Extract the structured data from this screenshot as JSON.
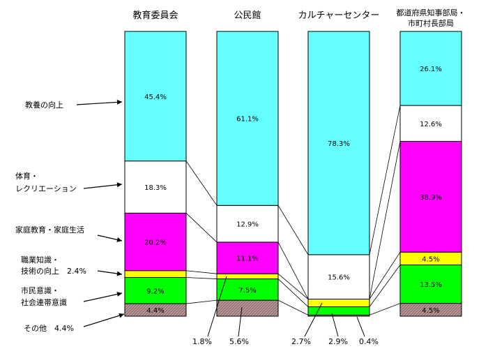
{
  "chart_data": {
    "type": "bar",
    "stacked": true,
    "percent": true,
    "categories": [
      [
        "教育委員会"
      ],
      [
        "公民館"
      ],
      [
        "カルチャーセンター"
      ],
      [
        "都道府県知事部局・",
        "市町村長部局"
      ]
    ],
    "series": [
      {
        "name": "その他",
        "color": "#b89a9a",
        "pattern": "hatch",
        "values": [
          4.4,
          5.6,
          0.4,
          4.5
        ]
      },
      {
        "name": "市民意識・社会連帯意識",
        "color": "#00ff00",
        "values": [
          9.2,
          7.5,
          2.9,
          13.5
        ]
      },
      {
        "name": "職業知識・技術の向上",
        "color": "#ffff00",
        "values": [
          2.4,
          1.8,
          2.7,
          4.5
        ]
      },
      {
        "name": "家庭教育・家庭生活",
        "color": "#ff00ff",
        "values": [
          20.2,
          11.1,
          0.0,
          38.9
        ]
      },
      {
        "name": "体育・レクリエーション",
        "color": "#ffffff",
        "values": [
          18.3,
          12.9,
          15.6,
          12.6
        ]
      },
      {
        "name": "教養の向上",
        "color": "#66ffff",
        "values": [
          45.4,
          61.1,
          78.3,
          26.1
        ]
      }
    ],
    "segment_labels": [
      [
        "4.4%",
        "9.2%",
        "",
        "20.2%",
        "18.3%",
        "45.4%"
      ],
      [
        "",
        "7.5%",
        "",
        "11.1%",
        "12.9%",
        "61.1%"
      ],
      [
        "",
        "",
        "",
        "",
        "15.6%",
        "78.3%"
      ],
      [
        "4.5%",
        "13.5%",
        "4.5%",
        "38.9%",
        "12.6%",
        "26.1%"
      ]
    ],
    "left_labels": [
      {
        "lines": [
          "教養の向上"
        ]
      },
      {
        "lines": [
          "体育・",
          "レクリエーション"
        ]
      },
      {
        "lines": [
          "家庭教育・家庭生活"
        ]
      },
      {
        "lines": [
          "職業知識・",
          "技術の向上　2.4%"
        ]
      },
      {
        "lines": [
          "市民意識・",
          "社会連帯意識"
        ]
      },
      {
        "lines": [
          "その他　4.4%"
        ]
      }
    ],
    "bottom_labels": [
      "1.8%",
      "5.6%",
      "2.7%",
      "2.9%",
      "0.4%"
    ],
    "ylim": [
      0,
      100
    ],
    "grid": false,
    "legend": "left-callouts"
  }
}
